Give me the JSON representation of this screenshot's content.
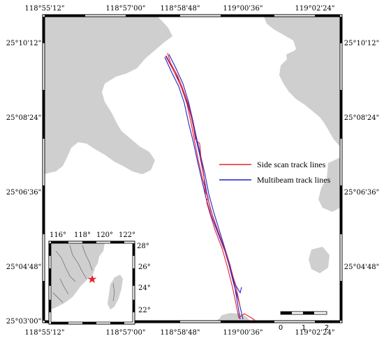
{
  "map": {
    "top_ticks": [
      "118°55'12\"",
      "118°57'00\"",
      "118°58'48\"",
      "119°00'36\"",
      "119°02'24\""
    ],
    "bottom_ticks": [
      "118°55'12\"",
      "118°57'00\"",
      "118°58'48\"",
      "119°00'36\"",
      "119°02'24\""
    ],
    "left_ticks": [
      "25°10'12\"",
      "25°08'24\"",
      "25°06'36\"",
      "25°04'48\"",
      "25°03'00\""
    ],
    "right_ticks": [
      "25°10'12\"",
      "25°08'24\"",
      "25°06'36\"",
      "25°04'48\""
    ],
    "legend": {
      "side_scan": {
        "label": "Side scan track lines",
        "color": "#e8202a"
      },
      "multibeam": {
        "label": "Multibeam track lines",
        "color": "#1f24c8"
      }
    },
    "scale_bar": {
      "labels": [
        "0",
        "1",
        "2"
      ]
    },
    "colors": {
      "land": "#cfcfcf",
      "water": "#ffffff",
      "frame": "#000000",
      "star": "#e8202a"
    },
    "inset": {
      "top_ticks": [
        "116°",
        "118°",
        "120°",
        "122°"
      ],
      "right_ticks": [
        "28°",
        "26°",
        "24°",
        "22°"
      ],
      "marker_icon": "star-icon"
    }
  }
}
